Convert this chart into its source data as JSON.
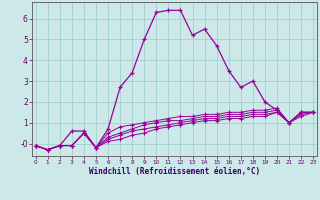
{
  "xlabel": "Windchill (Refroidissement éolien,°C)",
  "background_color": "#cce8e8",
  "grid_color": "#99cccc",
  "line_color": "#990099",
  "x_hours": [
    0,
    1,
    2,
    3,
    4,
    5,
    6,
    7,
    8,
    9,
    10,
    11,
    12,
    13,
    14,
    15,
    16,
    17,
    18,
    19,
    20,
    21,
    22,
    23
  ],
  "series": {
    "temp": [
      -0.1,
      -0.3,
      -0.1,
      0.6,
      0.6,
      -0.2,
      0.7,
      2.7,
      3.4,
      5.0,
      6.3,
      6.4,
      6.4,
      5.2,
      5.5,
      4.7,
      3.5,
      2.7,
      3.0,
      2.0,
      1.6,
      1.0,
      1.5,
      1.5
    ],
    "line1": [
      -0.1,
      -0.3,
      -0.1,
      -0.1,
      0.5,
      -0.2,
      0.5,
      0.8,
      0.9,
      1.0,
      1.1,
      1.2,
      1.3,
      1.3,
      1.4,
      1.4,
      1.5,
      1.5,
      1.6,
      1.6,
      1.7,
      1.0,
      1.5,
      1.5
    ],
    "line2": [
      -0.1,
      -0.3,
      -0.1,
      -0.1,
      0.5,
      -0.2,
      0.3,
      0.5,
      0.7,
      0.9,
      1.0,
      1.1,
      1.1,
      1.2,
      1.3,
      1.3,
      1.4,
      1.4,
      1.5,
      1.5,
      1.6,
      1.0,
      1.5,
      1.5
    ],
    "line3": [
      -0.1,
      -0.3,
      -0.1,
      -0.1,
      0.5,
      -0.2,
      0.2,
      0.4,
      0.6,
      0.7,
      0.8,
      0.9,
      1.0,
      1.1,
      1.2,
      1.2,
      1.3,
      1.3,
      1.4,
      1.4,
      1.5,
      1.0,
      1.4,
      1.5
    ],
    "line4": [
      -0.1,
      -0.3,
      -0.1,
      -0.1,
      0.5,
      -0.2,
      0.1,
      0.2,
      0.4,
      0.5,
      0.7,
      0.8,
      0.9,
      1.0,
      1.1,
      1.1,
      1.2,
      1.2,
      1.3,
      1.3,
      1.5,
      1.0,
      1.3,
      1.5
    ]
  },
  "ylim": [
    -0.6,
    6.8
  ],
  "xlim": [
    -0.3,
    23.3
  ],
  "yticks": [
    0,
    1,
    2,
    3,
    4,
    5,
    6
  ],
  "ytick_labels": [
    "-0",
    "1",
    "2",
    "3",
    "4",
    "5",
    "6"
  ],
  "xticks": [
    0,
    1,
    2,
    3,
    4,
    5,
    6,
    7,
    8,
    9,
    10,
    11,
    12,
    13,
    14,
    15,
    16,
    17,
    18,
    19,
    20,
    21,
    22,
    23
  ]
}
